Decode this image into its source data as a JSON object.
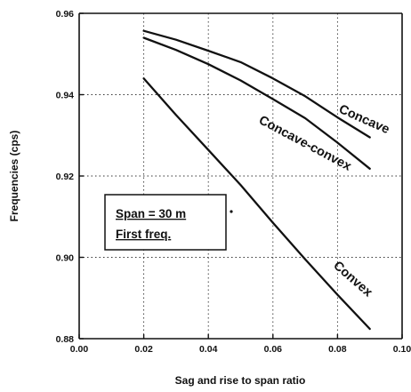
{
  "chart_data": {
    "type": "line",
    "title": "",
    "xlabel": "Sag and rise to span ratio",
    "ylabel": "Frequencies (cps)",
    "xlim": [
      0.0,
      0.1
    ],
    "ylim": [
      0.88,
      0.96
    ],
    "x_ticks": [
      "0.00",
      "0.02",
      "0.04",
      "0.06",
      "0.08",
      "0.10"
    ],
    "y_ticks": [
      "0.88",
      "0.90",
      "0.92",
      "0.94",
      "0.96"
    ],
    "grid": "dotted",
    "series": [
      {
        "name": "Concave",
        "x": [
          0.02,
          0.03,
          0.04,
          0.05,
          0.06,
          0.07,
          0.08,
          0.09
        ],
        "y": [
          0.9557,
          0.9535,
          0.9508,
          0.948,
          0.944,
          0.9396,
          0.9344,
          0.9295
        ]
      },
      {
        "name": "Concave-convex",
        "x": [
          0.02,
          0.03,
          0.04,
          0.05,
          0.06,
          0.07,
          0.08,
          0.09
        ],
        "y": [
          0.954,
          0.951,
          0.9475,
          0.9435,
          0.9389,
          0.9342,
          0.9282,
          0.9218
        ]
      },
      {
        "name": "Convex",
        "x": [
          0.02,
          0.03,
          0.04,
          0.05,
          0.06,
          0.07,
          0.08,
          0.09
        ],
        "y": [
          0.944,
          0.935,
          0.9264,
          0.9178,
          0.9085,
          0.8995,
          0.8908,
          0.8824
        ]
      }
    ],
    "annotation": {
      "line1": "Span = 30 m",
      "line2": "First freq."
    }
  }
}
